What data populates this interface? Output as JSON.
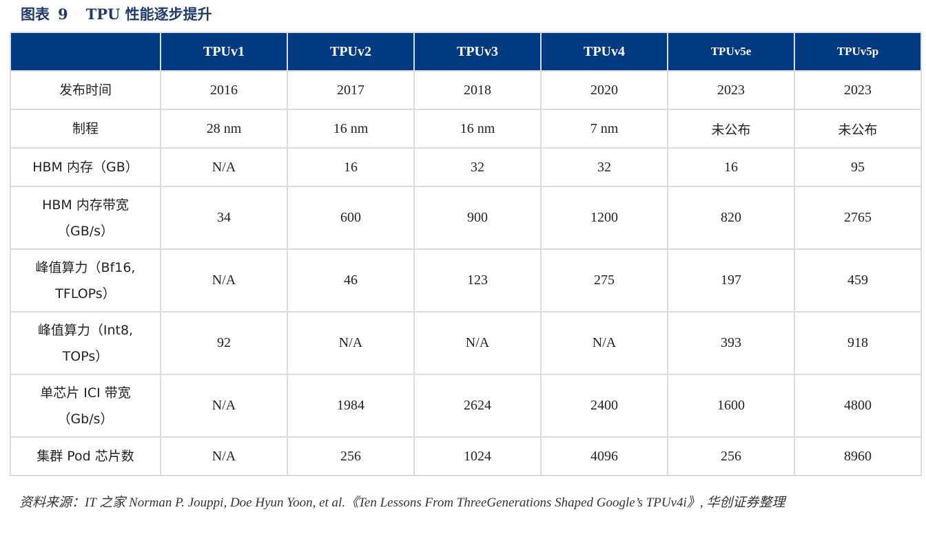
{
  "figure": {
    "label": "图表",
    "number": "9",
    "title": "TPU 性能逐步提升"
  },
  "table": {
    "headers": [
      "",
      "TPUv1",
      "TPUv2",
      "TPUv3",
      "TPUv4",
      "TPUv5e",
      "TPUv5p"
    ],
    "rows": [
      {
        "label": [
          "发布时间"
        ],
        "values": [
          "2016",
          "2017",
          "2018",
          "2020",
          "2023",
          "2023"
        ]
      },
      {
        "label": [
          "制程"
        ],
        "values": [
          "28 nm",
          "16 nm",
          "16 nm",
          "7 nm",
          "未公布",
          "未公布"
        ]
      },
      {
        "label": [
          "HBM 内存（GB）"
        ],
        "values": [
          "N/A",
          "16",
          "32",
          "32",
          "16",
          "95"
        ]
      },
      {
        "label": [
          "HBM 内存带宽",
          "（GB/s）"
        ],
        "values": [
          "34",
          "600",
          "900",
          "1200",
          "820",
          "2765"
        ]
      },
      {
        "label": [
          "峰值算力（Bf16,",
          "TFLOPs）"
        ],
        "values": [
          "N/A",
          "46",
          "123",
          "275",
          "197",
          "459"
        ]
      },
      {
        "label": [
          "峰值算力（Int8,",
          "TOPs）"
        ],
        "values": [
          "92",
          "N/A",
          "N/A",
          "N/A",
          "393",
          "918"
        ]
      },
      {
        "label": [
          "单芯片 ICI 带宽",
          "（Gb/s）"
        ],
        "values": [
          "N/A",
          "1984",
          "2624",
          "2400",
          "1600",
          "4800"
        ]
      },
      {
        "label": [
          "集群 Pod 芯片数"
        ],
        "values": [
          "N/A",
          "256",
          "1024",
          "4096",
          "256",
          "8960"
        ]
      }
    ]
  },
  "source": {
    "text": "资料来源：IT 之家  Norman P. Jouppi, Doe Hyun Yoon, et al.《Ten Lessons From ThreeGenerations Shaped Google’s TPUv4i》, 华创证券整理"
  }
}
